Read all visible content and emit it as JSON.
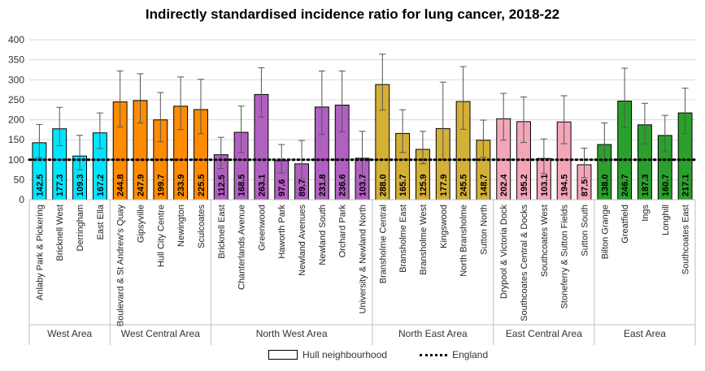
{
  "chart_data": {
    "type": "bar",
    "title": "Indirectly standardised incidence ratio for lung cancer, 2018-22",
    "ylim": [
      0,
      400
    ],
    "yticks": [
      0,
      50,
      100,
      150,
      200,
      250,
      300,
      350,
      400
    ],
    "reference_line": {
      "name": "England",
      "value": 100
    },
    "legend": {
      "placement": "bottom",
      "items": [
        "Hull neighbourhood",
        "England"
      ]
    },
    "groups": [
      {
        "name": "West Area",
        "color": "#00e5ff",
        "categories": [
          {
            "label": "Anlaby Park & Pickering",
            "value": 142.5,
            "lower": 105,
            "upper": 188
          },
          {
            "label": "Bricknell West",
            "value": 177.3,
            "lower": 135,
            "upper": 231
          },
          {
            "label": "Derringham",
            "value": 109.3,
            "lower": 75,
            "upper": 161
          },
          {
            "label": "East Ella",
            "value": 167.2,
            "lower": 128,
            "upper": 217
          }
        ]
      },
      {
        "name": "West Central Area",
        "color": "#ff8c00",
        "categories": [
          {
            "label": "Boulevard & St Andrew's Quay",
            "value": 244.8,
            "lower": 182,
            "upper": 322
          },
          {
            "label": "Gipsyville",
            "value": 247.9,
            "lower": 192,
            "upper": 315
          },
          {
            "label": "Hull City Centre",
            "value": 199.7,
            "lower": 145,
            "upper": 268
          },
          {
            "label": "Newington",
            "value": 233.9,
            "lower": 175,
            "upper": 307
          },
          {
            "label": "Sculcoates",
            "value": 225.5,
            "lower": 165,
            "upper": 301
          }
        ]
      },
      {
        "name": "North West Area",
        "color": "#b060c0",
        "categories": [
          {
            "label": "Bricknell East",
            "value": 112.5,
            "lower": 78,
            "upper": 156
          },
          {
            "label": "Chanterlands Avenue",
            "value": 168.5,
            "lower": 118,
            "upper": 234
          },
          {
            "label": "Greenwood",
            "value": 263.1,
            "lower": 207,
            "upper": 330
          },
          {
            "label": "Haworth Park",
            "value": 97.6,
            "lower": 67,
            "upper": 138
          },
          {
            "label": "Newland Avenues",
            "value": 89.7,
            "lower": 51,
            "upper": 148
          },
          {
            "label": "Newland South",
            "value": 231.8,
            "lower": 163,
            "upper": 322
          },
          {
            "label": "Orchard Park",
            "value": 236.6,
            "lower": 170,
            "upper": 322
          },
          {
            "label": "University & Newland North",
            "value": 103.7,
            "lower": 60,
            "upper": 171
          }
        ]
      },
      {
        "name": "North East Area",
        "color": "#d4b036",
        "categories": [
          {
            "label": "Bransholme Central",
            "value": 288.0,
            "lower": 224,
            "upper": 364
          },
          {
            "label": "Bransholme East",
            "value": 165.7,
            "lower": 118,
            "upper": 225
          },
          {
            "label": "Bransholme West",
            "value": 125.9,
            "lower": 90,
            "upper": 171
          },
          {
            "label": "Kingswood",
            "value": 177.9,
            "lower": 100,
            "upper": 294
          },
          {
            "label": "North Bransholme",
            "value": 245.5,
            "lower": 176,
            "upper": 333
          },
          {
            "label": "Sutton North",
            "value": 148.7,
            "lower": 106,
            "upper": 199
          }
        ]
      },
      {
        "name": "East Central Area",
        "color": "#f4a6b8",
        "categories": [
          {
            "label": "Drypool & Victoria Dock",
            "value": 202.4,
            "lower": 149,
            "upper": 266
          },
          {
            "label": "Southcoates Central & Docks",
            "value": 195.2,
            "lower": 143,
            "upper": 257
          },
          {
            "label": "Southcoates West",
            "value": 103.1,
            "lower": 65,
            "upper": 152
          },
          {
            "label": "Stoneferry & Sutton Fields",
            "value": 194.5,
            "lower": 140,
            "upper": 260
          },
          {
            "label": "Sutton South",
            "value": 87.5,
            "lower": 55,
            "upper": 129
          }
        ]
      },
      {
        "name": "East Area",
        "color": "#2ca02c",
        "categories": [
          {
            "label": "Bilton Grange",
            "value": 138.0,
            "lower": 95,
            "upper": 192
          },
          {
            "label": "Greatfield",
            "value": 246.7,
            "lower": 180,
            "upper": 329
          },
          {
            "label": "Ings",
            "value": 187.3,
            "lower": 140,
            "upper": 241
          },
          {
            "label": "Longhill",
            "value": 160.7,
            "lower": 120,
            "upper": 211
          },
          {
            "label": "Southcoates East",
            "value": 217.1,
            "lower": 165,
            "upper": 279
          }
        ]
      }
    ]
  }
}
